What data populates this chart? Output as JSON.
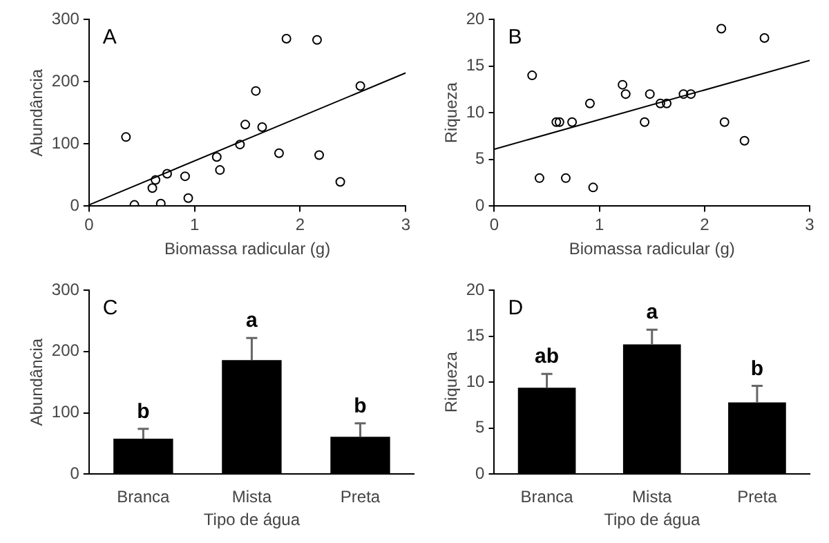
{
  "chart_data": [
    {
      "type": "scatter",
      "title": "A",
      "xlabel": "Biomassa radicular (g)",
      "ylabel": "Abundância",
      "xlim": [
        0,
        3
      ],
      "xticks": [
        0,
        1,
        2,
        3
      ],
      "ylim": [
        0,
        300
      ],
      "yticks": [
        0,
        100,
        200,
        300
      ],
      "legend": false,
      "marker": "circle",
      "series": [
        {
          "color": "#000000",
          "x": [
            0.35,
            0.43,
            0.6,
            0.63,
            0.74,
            0.68,
            0.91,
            0.94,
            1.21,
            1.24,
            1.43,
            1.48,
            1.58,
            1.64,
            1.8,
            1.87,
            2.16,
            2.18,
            2.38,
            2.57
          ],
          "values": [
            111,
            2,
            29,
            42,
            52,
            4,
            48,
            13,
            79,
            58,
            99,
            131,
            185,
            127,
            85,
            269,
            267,
            82,
            39,
            193
          ]
        },
        {
          "type": "line",
          "marker": "none",
          "color": "#000000",
          "x": [
            0,
            3
          ],
          "values": [
            2,
            214
          ]
        }
      ]
    },
    {
      "type": "scatter",
      "title": "B",
      "xlabel": "Biomassa radicular (g)",
      "ylabel": "Riqueza",
      "xlim": [
        0,
        3
      ],
      "xticks": [
        0,
        1,
        2,
        3
      ],
      "ylim": [
        0,
        20
      ],
      "yticks": [
        0,
        5,
        10,
        15,
        20
      ],
      "legend": false,
      "marker": "circle",
      "series": [
        {
          "color": "#000000",
          "x": [
            0.36,
            0.43,
            0.59,
            0.62,
            0.74,
            0.68,
            0.91,
            0.94,
            1.22,
            1.25,
            1.43,
            1.48,
            1.58,
            1.64,
            1.8,
            1.87,
            2.16,
            2.19,
            2.38,
            2.57
          ],
          "values": [
            14,
            3,
            9,
            9,
            9,
            3,
            11,
            2,
            13,
            12,
            9,
            12,
            11,
            11,
            12,
            12,
            19,
            9,
            7,
            18
          ]
        },
        {
          "type": "line",
          "marker": "none",
          "color": "#000000",
          "x": [
            0,
            3
          ],
          "values": [
            6.1,
            15.6
          ]
        }
      ]
    },
    {
      "type": "bar",
      "title": "C",
      "xlabel": "Tipo de água",
      "ylabel": "Abundância",
      "categories": [
        "Branca",
        "Mista",
        "Preta"
      ],
      "values": [
        58,
        186,
        61
      ],
      "color": "#000000",
      "errors": [
        [
          58,
          74
        ],
        [
          186,
          222
        ],
        [
          61,
          83
        ]
      ],
      "ylim": [
        0,
        300
      ],
      "yticks": [
        0,
        100,
        200,
        300
      ],
      "legend": false,
      "annotations": [
        "b",
        "a",
        "b"
      ]
    },
    {
      "type": "bar",
      "title": "D",
      "xlabel": "Tipo de água",
      "ylabel": "Riqueza",
      "categories": [
        "Branca",
        "Mista",
        "Preta"
      ],
      "values": [
        9.4,
        14.1,
        7.8
      ],
      "color": "#000000",
      "errors": [
        [
          9.4,
          10.9
        ],
        [
          14.1,
          15.7
        ],
        [
          7.8,
          9.6
        ]
      ],
      "ylim": [
        0,
        20
      ],
      "yticks": [
        0,
        5,
        10,
        15,
        20
      ],
      "legend": false,
      "annotations": [
        "ab",
        "a",
        "b"
      ]
    }
  ]
}
